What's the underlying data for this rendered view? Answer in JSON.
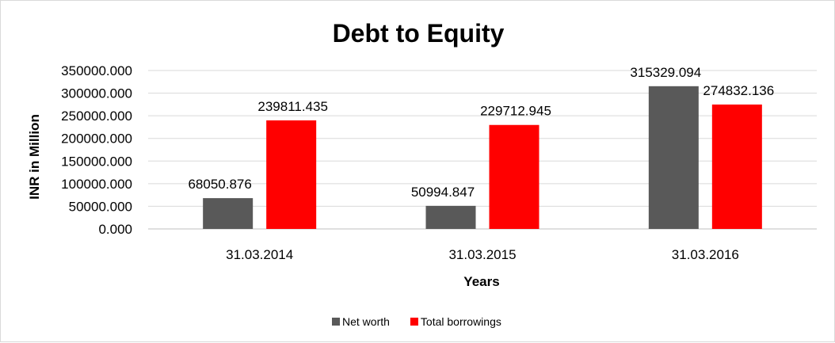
{
  "chart_data": {
    "type": "bar",
    "title": "Debt to Equity",
    "xlabel": "Years",
    "ylabel": "INR in Million",
    "categories": [
      "31.03.2014",
      "31.03.2015",
      "31.03.2016"
    ],
    "series": [
      {
        "name": "Net worth",
        "color": "#595959",
        "values": [
          68050.876,
          50994.847,
          315329.094
        ],
        "labels": [
          "68050.876",
          "50994.847",
          "315329.094"
        ]
      },
      {
        "name": "Total borrowings",
        "color": "#ff0000",
        "values": [
          239811.435,
          229712.945,
          274832.136
        ],
        "labels": [
          "239811.435",
          "229712.945",
          "274832.136"
        ]
      }
    ],
    "ylim": [
      0,
      350000
    ],
    "yticks": [
      "0.000",
      "50000.000",
      "100000.000",
      "150000.000",
      "200000.000",
      "250000.000",
      "300000.000",
      "350000.000"
    ],
    "grid": true,
    "legend_position": "bottom"
  }
}
